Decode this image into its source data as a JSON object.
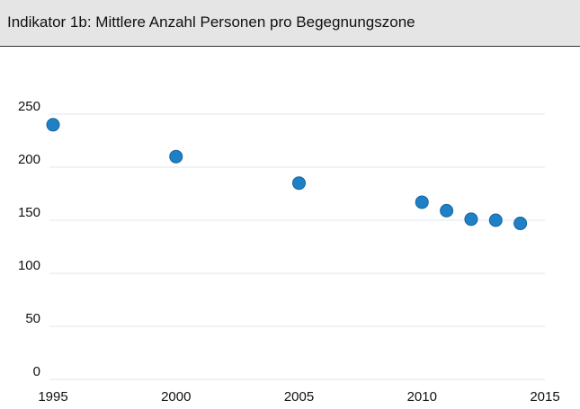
{
  "chart_data": {
    "type": "scatter",
    "title": "Indikator 1b: Mittlere Anzahl Personen pro Begegnungszone",
    "series": [
      {
        "color": "#1f80c6",
        "x": [
          1995,
          2000,
          2005,
          2010,
          2011,
          2012,
          2013,
          2014
        ],
        "values": [
          240,
          210,
          185,
          167,
          159,
          151,
          150,
          147
        ]
      }
    ],
    "xlim": [
      1995,
      2015
    ],
    "xticks": [
      1995,
      2000,
      2005,
      2010,
      2015
    ],
    "ylim": [
      0,
      250
    ],
    "yticks": [
      0,
      50,
      100,
      150,
      200,
      250
    ],
    "grid": true
  }
}
